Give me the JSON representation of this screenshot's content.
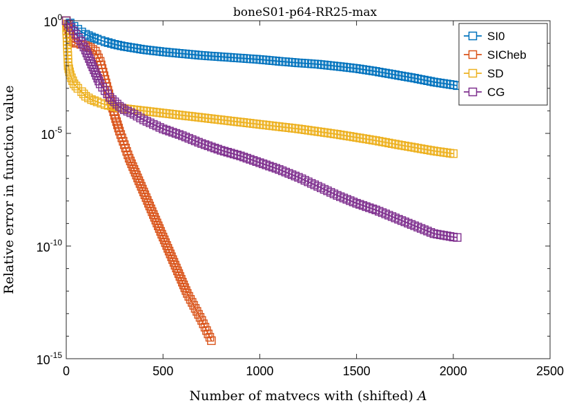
{
  "chart_data": {
    "type": "line",
    "title": "boneS01-p64-RR25-max",
    "xlabel": "Number of matvecs with (shifted) ",
    "xlabel_math": "A",
    "ylabel": "Relative error in function value",
    "xlim": [
      0,
      2500
    ],
    "ylim_log10": [
      -15,
      0
    ],
    "yscale": "log",
    "x_ticks": [
      0,
      500,
      1000,
      1500,
      2000,
      2500
    ],
    "x_tick_labels": [
      "0",
      "500",
      "1000",
      "1500",
      "2000",
      "2500"
    ],
    "y_ticks_log10": [
      0,
      -5,
      -10,
      -15
    ],
    "y_tick_labels": [
      {
        "base": "10",
        "exp": "0"
      },
      {
        "base": "10",
        "exp": "-5"
      },
      {
        "base": "10",
        "exp": "-10"
      },
      {
        "base": "10",
        "exp": "-15"
      }
    ],
    "legend_position": "top-right",
    "series": [
      {
        "name": "SI0",
        "color": "#0072BD",
        "marker": "square",
        "points": [
          [
            0,
            0
          ],
          [
            20,
            -0.1
          ],
          [
            40,
            -0.25
          ],
          [
            60,
            -0.38
          ],
          [
            80,
            -0.5
          ],
          [
            100,
            -0.6
          ],
          [
            130,
            -0.72
          ],
          [
            160,
            -0.82
          ],
          [
            200,
            -0.93
          ],
          [
            250,
            -1.05
          ],
          [
            300,
            -1.14
          ],
          [
            400,
            -1.28
          ],
          [
            500,
            -1.38
          ],
          [
            600,
            -1.46
          ],
          [
            700,
            -1.54
          ],
          [
            800,
            -1.6
          ],
          [
            900,
            -1.66
          ],
          [
            1000,
            -1.72
          ],
          [
            1100,
            -1.8
          ],
          [
            1200,
            -1.87
          ],
          [
            1300,
            -1.93
          ],
          [
            1400,
            -2.02
          ],
          [
            1500,
            -2.12
          ],
          [
            1600,
            -2.25
          ],
          [
            1700,
            -2.4
          ],
          [
            1800,
            -2.55
          ],
          [
            1900,
            -2.72
          ],
          [
            2000,
            -2.85
          ],
          [
            2020,
            -2.88
          ]
        ]
      },
      {
        "name": "SICheb",
        "color": "#D95319",
        "marker": "square",
        "points": [
          [
            0,
            0
          ],
          [
            25,
            -0.9
          ],
          [
            50,
            -1.0
          ],
          [
            75,
            -1.05
          ],
          [
            100,
            -1.1
          ],
          [
            125,
            -1.2
          ],
          [
            150,
            -1.35
          ],
          [
            175,
            -1.8
          ],
          [
            200,
            -2.6
          ],
          [
            225,
            -3.4
          ],
          [
            250,
            -4.2
          ],
          [
            275,
            -4.9
          ],
          [
            300,
            -5.5
          ],
          [
            325,
            -6.1
          ],
          [
            350,
            -6.6
          ],
          [
            375,
            -7.1
          ],
          [
            400,
            -7.6
          ],
          [
            425,
            -8.1
          ],
          [
            450,
            -8.6
          ],
          [
            475,
            -9.1
          ],
          [
            500,
            -9.6
          ],
          [
            525,
            -10.1
          ],
          [
            550,
            -10.6
          ],
          [
            575,
            -11.1
          ],
          [
            600,
            -11.6
          ],
          [
            625,
            -12.1
          ],
          [
            650,
            -12.5
          ],
          [
            675,
            -12.9
          ],
          [
            700,
            -13.3
          ],
          [
            725,
            -13.75
          ],
          [
            750,
            -14.2
          ]
        ]
      },
      {
        "name": "SD",
        "color": "#EDB120",
        "marker": "square",
        "points": [
          [
            0,
            0
          ],
          [
            10,
            -2.0
          ],
          [
            20,
            -2.4
          ],
          [
            40,
            -2.8
          ],
          [
            60,
            -3.0
          ],
          [
            80,
            -3.15
          ],
          [
            100,
            -3.35
          ],
          [
            130,
            -3.5
          ],
          [
            160,
            -3.6
          ],
          [
            200,
            -3.72
          ],
          [
            250,
            -3.82
          ],
          [
            300,
            -3.9
          ],
          [
            400,
            -4.0
          ],
          [
            500,
            -4.1
          ],
          [
            600,
            -4.2
          ],
          [
            700,
            -4.3
          ],
          [
            800,
            -4.4
          ],
          [
            900,
            -4.5
          ],
          [
            1000,
            -4.6
          ],
          [
            1100,
            -4.7
          ],
          [
            1200,
            -4.8
          ],
          [
            1300,
            -4.92
          ],
          [
            1400,
            -5.04
          ],
          [
            1500,
            -5.18
          ],
          [
            1600,
            -5.32
          ],
          [
            1700,
            -5.48
          ],
          [
            1800,
            -5.63
          ],
          [
            1900,
            -5.78
          ],
          [
            2000,
            -5.9
          ]
        ]
      },
      {
        "name": "CG",
        "color": "#7E2F8E",
        "marker": "square",
        "points": [
          [
            0,
            0
          ],
          [
            25,
            -0.3
          ],
          [
            50,
            -0.6
          ],
          [
            75,
            -0.9
          ],
          [
            100,
            -1.3
          ],
          [
            125,
            -1.8
          ],
          [
            150,
            -2.3
          ],
          [
            175,
            -2.8
          ],
          [
            200,
            -3.1
          ],
          [
            225,
            -3.4
          ],
          [
            250,
            -3.6
          ],
          [
            275,
            -3.8
          ],
          [
            300,
            -3.95
          ],
          [
            350,
            -4.15
          ],
          [
            400,
            -4.4
          ],
          [
            450,
            -4.6
          ],
          [
            500,
            -4.8
          ],
          [
            550,
            -4.95
          ],
          [
            600,
            -5.1
          ],
          [
            700,
            -5.45
          ],
          [
            800,
            -5.75
          ],
          [
            900,
            -6.0
          ],
          [
            1000,
            -6.3
          ],
          [
            1100,
            -6.6
          ],
          [
            1200,
            -6.95
          ],
          [
            1300,
            -7.35
          ],
          [
            1400,
            -7.75
          ],
          [
            1500,
            -8.1
          ],
          [
            1600,
            -8.4
          ],
          [
            1700,
            -8.75
          ],
          [
            1800,
            -9.1
          ],
          [
            1900,
            -9.45
          ],
          [
            2000,
            -9.6
          ],
          [
            2020,
            -9.62
          ]
        ]
      }
    ]
  }
}
